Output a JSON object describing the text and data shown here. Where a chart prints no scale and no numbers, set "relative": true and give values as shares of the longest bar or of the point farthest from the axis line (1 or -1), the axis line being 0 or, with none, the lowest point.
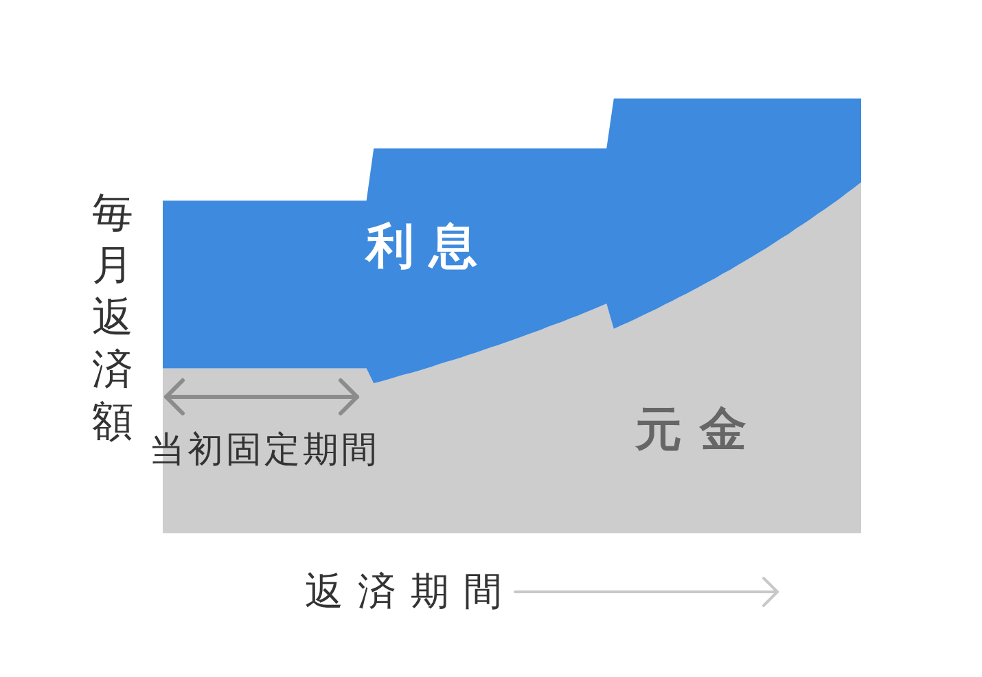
{
  "chart_data": {
    "type": "area",
    "stacked": true,
    "relative": true,
    "ylabel": "毎月返済額",
    "xlabel": "返済期間",
    "annotations": [
      "当初固定期間"
    ],
    "categories": [
      null,
      null,
      null,
      null,
      null,
      null,
      null,
      null,
      null,
      null,
      null,
      null,
      null,
      null,
      null,
      null,
      null,
      null,
      null,
      null,
      null,
      null,
      null,
      null,
      null,
      null,
      null,
      null,
      null,
      null,
      null,
      null,
      null,
      null,
      null,
      null,
      null,
      null,
      null,
      null,
      null,
      null,
      null,
      null,
      null,
      null,
      null,
      null,
      null,
      null,
      null,
      null,
      null,
      null,
      null,
      null,
      null,
      null,
      null,
      null,
      null,
      null,
      null,
      null,
      null,
      null,
      null,
      null,
      null,
      null,
      null,
      null,
      null,
      null,
      null,
      null,
      null,
      null,
      null,
      null,
      null,
      null,
      null,
      null,
      null,
      null,
      null,
      null,
      null,
      null,
      null,
      null,
      null,
      null,
      null,
      null,
      null
    ],
    "series": [
      {
        "name": "元金",
        "color": "#cdcdcd",
        "values": [
          0.379,
          0.379,
          0.379,
          0.379,
          0.379,
          0.379,
          0.379,
          0.379,
          0.379,
          0.379,
          0.379,
          0.379,
          0.379,
          0.379,
          0.379,
          0.379,
          0.379,
          0.379,
          0.379,
          0.379,
          0.379,
          0.379,
          0.379,
          0.379,
          0.379,
          0.379,
          0.379,
          0.379,
          0.379,
          0.345,
          0.349,
          0.354,
          0.359,
          0.364,
          0.368,
          0.373,
          0.378,
          0.383,
          0.389,
          0.394,
          0.399,
          0.404,
          0.41,
          0.415,
          0.421,
          0.427,
          0.432,
          0.438,
          0.444,
          0.45,
          0.456,
          0.462,
          0.468,
          0.475,
          0.481,
          0.487,
          0.494,
          0.5,
          0.507,
          0.514,
          0.521,
          0.528,
          0.47,
          0.478,
          0.485,
          0.493,
          0.501,
          0.509,
          0.517,
          0.526,
          0.534,
          0.543,
          0.551,
          0.56,
          0.569,
          0.578,
          0.587,
          0.597,
          0.606,
          0.616,
          0.626,
          0.636,
          0.646,
          0.656,
          0.667,
          0.678,
          0.688,
          0.7,
          0.711,
          0.722,
          0.734,
          0.745,
          0.757,
          0.769,
          0.782,
          0.794,
          0.807
        ]
      },
      {
        "name": "利息",
        "color": "#3e8ade",
        "values": [
          0.386,
          0.386,
          0.386,
          0.386,
          0.386,
          0.386,
          0.386,
          0.386,
          0.386,
          0.386,
          0.386,
          0.386,
          0.386,
          0.386,
          0.386,
          0.386,
          0.386,
          0.386,
          0.386,
          0.386,
          0.386,
          0.386,
          0.386,
          0.386,
          0.386,
          0.386,
          0.386,
          0.386,
          0.386,
          0.54,
          0.536,
          0.531,
          0.526,
          0.521,
          0.517,
          0.512,
          0.507,
          0.502,
          0.496,
          0.491,
          0.486,
          0.481,
          0.475,
          0.47,
          0.464,
          0.458,
          0.453,
          0.447,
          0.441,
          0.435,
          0.429,
          0.423,
          0.417,
          0.41,
          0.404,
          0.398,
          0.391,
          0.385,
          0.378,
          0.371,
          0.364,
          0.357,
          0.53,
          0.522,
          0.515,
          0.507,
          0.499,
          0.491,
          0.483,
          0.474,
          0.466,
          0.457,
          0.449,
          0.44,
          0.431,
          0.422,
          0.413,
          0.403,
          0.394,
          0.384,
          0.374,
          0.364,
          0.354,
          0.344,
          0.333,
          0.322,
          0.312,
          0.3,
          0.289,
          0.278,
          0.266,
          0.255,
          0.243,
          0.231,
          0.218,
          0.206,
          0.193
        ]
      }
    ]
  }
}
